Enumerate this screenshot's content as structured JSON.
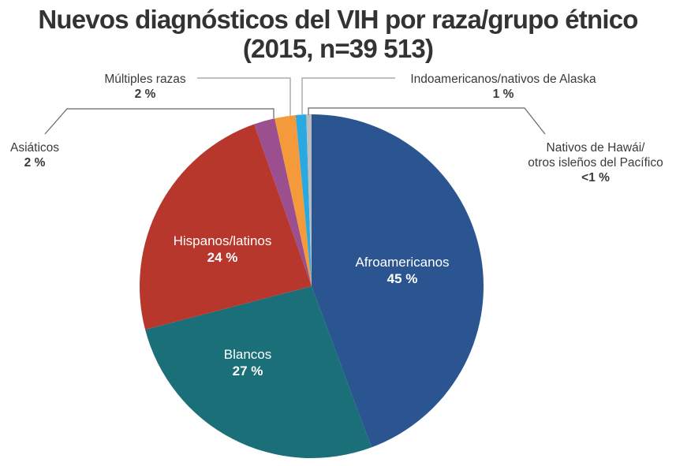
{
  "title": {
    "line1": "Nuevos diagnósticos del VIH por raza/grupo étnico",
    "line2": "(2015, n=39 513)"
  },
  "labels": {
    "afro": {
      "name": "Afroamericanos",
      "pct": "45 %"
    },
    "blancos": {
      "name": "Blancos",
      "pct": "27 %"
    },
    "hispanos": {
      "name": "Hispanos/latinos",
      "pct": "24 %"
    },
    "asiaticos": {
      "name": "Asiáticos",
      "pct": "2 %"
    },
    "multiples": {
      "name": "Múltiples razas",
      "pct": "2 %"
    },
    "indo": {
      "name": "Indoamericanos/nativos de Alaska",
      "pct": "1 %"
    },
    "nativos": {
      "name1": "Nativos de Hawái/",
      "name2": "otros isleños del Pacífico",
      "pct": "<1 %"
    }
  },
  "chart_data": {
    "type": "pie",
    "title": "Nuevos diagnósticos del VIH por raza/grupo étnico (2015, n=39 513)",
    "categories": [
      "Afroamericanos",
      "Blancos",
      "Hispanos/latinos",
      "Asiáticos",
      "Múltiples razas",
      "Indoamericanos/nativos de Alaska",
      "Nativos de Hawái/otros isleños del Pacífico"
    ],
    "values": [
      45,
      27,
      24,
      2,
      2,
      1,
      0.5
    ],
    "value_labels": [
      "45 %",
      "27 %",
      "24 %",
      "2 %",
      "2 %",
      "1 %",
      "<1 %"
    ],
    "colors": [
      "#2a5591",
      "#1a6f78",
      "#b7372c",
      "#9c4f8f",
      "#f59a3a",
      "#2aa9e0",
      "#bdbdbd"
    ],
    "start_angle": "12 o'clock",
    "direction": "clockwise",
    "legend": "none (direct labels)"
  }
}
